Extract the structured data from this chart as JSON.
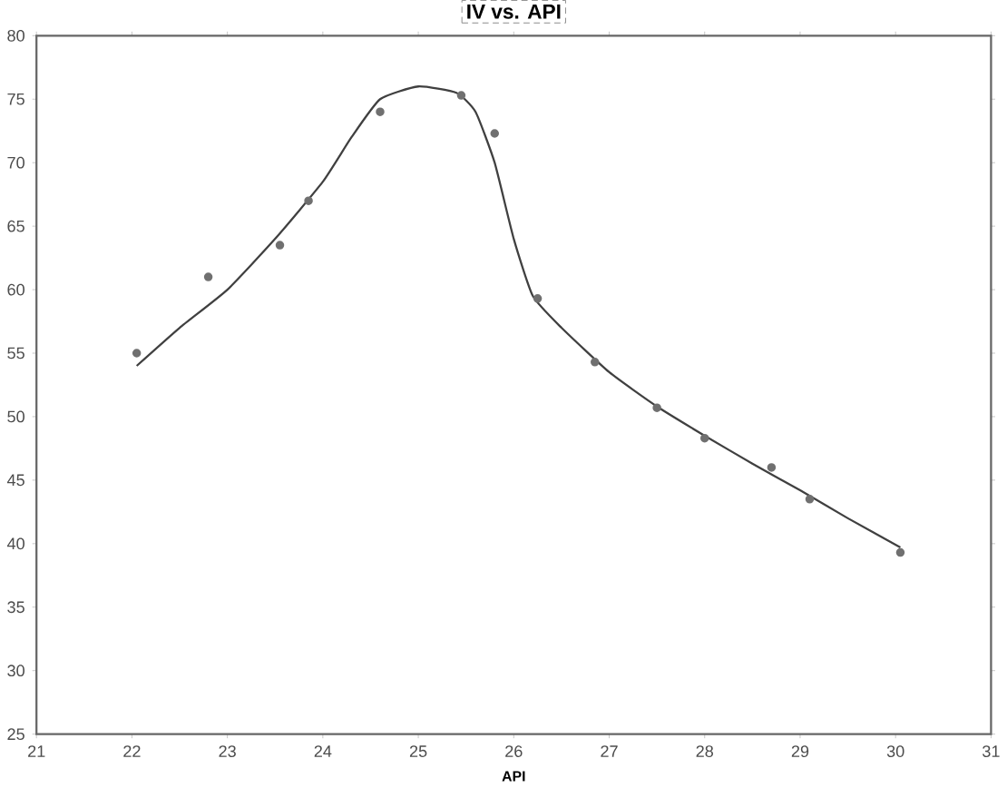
{
  "chart_data": {
    "type": "scatter",
    "title": "IV vs. API",
    "xlabel": "API",
    "xlim": [
      21,
      31
    ],
    "xticks": [
      21,
      22,
      23,
      24,
      25,
      26,
      27,
      28,
      29,
      30,
      31
    ],
    "ylim": [
      25,
      80
    ],
    "yticks": [
      25,
      30,
      35,
      40,
      45,
      50,
      55,
      60,
      65,
      70,
      75,
      80
    ],
    "grid": false,
    "series": [
      {
        "color": "#707070",
        "marker": "circle",
        "x": [
          22.05,
          22.8,
          23.55,
          23.85,
          24.6,
          25.45,
          25.8,
          26.25,
          26.85,
          27.5,
          28.0,
          28.7,
          29.1,
          30.05
        ],
        "values": [
          55,
          61,
          63.5,
          67,
          74,
          75.3,
          72.3,
          59.3,
          54.3,
          50.7,
          48.3,
          46,
          43.5,
          39.3
        ]
      },
      {
        "type": "line",
        "color": "#404040",
        "marker": "none",
        "line_style": "solid",
        "x": [
          22.05,
          22.5,
          23,
          23.5,
          24,
          24.3,
          24.6,
          25,
          25.4,
          25.6,
          25.8,
          26,
          26.2,
          26.5,
          27,
          27.5,
          28,
          28.5,
          29,
          29.5,
          30.05
        ],
        "values": [
          54,
          57,
          60,
          64,
          68.5,
          72,
          75,
          76,
          75.5,
          74,
          70,
          64,
          59.5,
          57,
          53.5,
          50.8,
          48.5,
          46.3,
          44.2,
          42,
          39.7
        ]
      }
    ]
  }
}
